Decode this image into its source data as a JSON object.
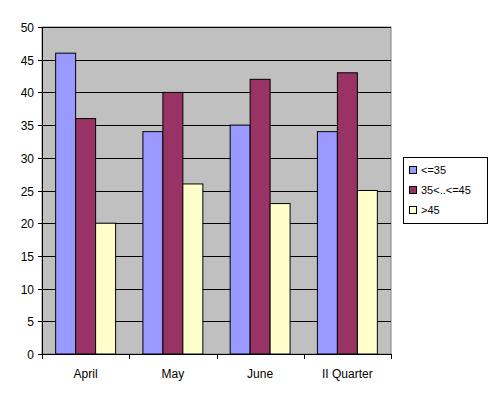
{
  "chart_data": {
    "type": "bar",
    "categories": [
      "April",
      "May",
      "June",
      "II Quarter"
    ],
    "series": [
      {
        "name": "<=35",
        "color": "#9999ff",
        "values": [
          46,
          34,
          35,
          34
        ]
      },
      {
        "name": "35<..<=45",
        "color": "#993366",
        "values": [
          36,
          40,
          42,
          43
        ]
      },
      {
        "name": ">45",
        "color": "#ffffcc",
        "values": [
          20,
          26,
          23,
          25
        ]
      }
    ],
    "ylim": [
      0,
      50
    ],
    "yticks": [
      0,
      5,
      10,
      15,
      20,
      25,
      30,
      35,
      40,
      45,
      50
    ],
    "grid": true,
    "legend": "right"
  }
}
